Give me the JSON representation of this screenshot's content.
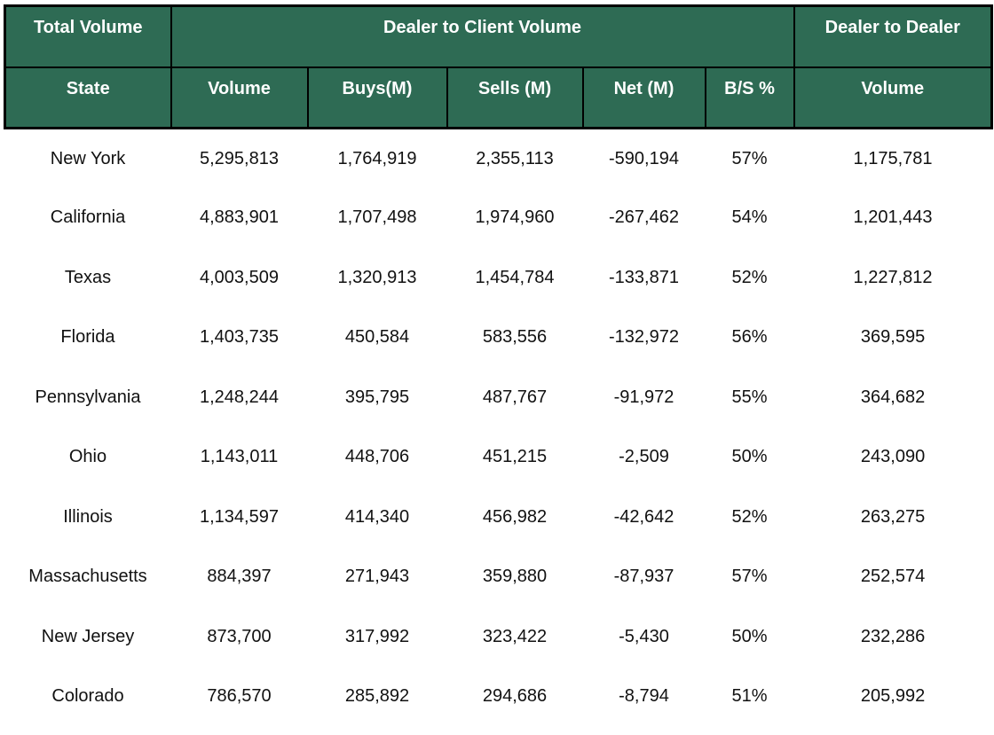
{
  "chart_data": {
    "type": "table",
    "column_groups": [
      {
        "label": "Total Volume",
        "span": 1
      },
      {
        "label": "Dealer to Client Volume",
        "span": 5
      },
      {
        "label": "Dealer to Dealer",
        "span": 1
      }
    ],
    "columns": [
      "State",
      "Volume",
      "Buys(M)",
      "Sells (M)",
      "Net (M)",
      "B/S %",
      "Volume"
    ],
    "rows": [
      [
        "New York",
        "5,295,813",
        "1,764,919",
        "2,355,113",
        "-590,194",
        "57%",
        "1,175,781"
      ],
      [
        "California",
        "4,883,901",
        "1,707,498",
        "1,974,960",
        "-267,462",
        "54%",
        "1,201,443"
      ],
      [
        "Texas",
        "4,003,509",
        "1,320,913",
        "1,454,784",
        "-133,871",
        "52%",
        "1,227,812"
      ],
      [
        "Florida",
        "1,403,735",
        "450,584",
        "583,556",
        "-132,972",
        "56%",
        "369,595"
      ],
      [
        "Pennsylvania",
        "1,248,244",
        "395,795",
        "487,767",
        "-91,972",
        "55%",
        "364,682"
      ],
      [
        "Ohio",
        "1,143,011",
        "448,706",
        "451,215",
        "-2,509",
        "50%",
        "243,090"
      ],
      [
        "Illinois",
        "1,134,597",
        "414,340",
        "456,982",
        "-42,642",
        "52%",
        "263,275"
      ],
      [
        "Massachusetts",
        "884,397",
        "271,943",
        "359,880",
        "-87,937",
        "57%",
        "252,574"
      ],
      [
        "New Jersey",
        "873,700",
        "317,992",
        "323,422",
        "-5,430",
        "50%",
        "232,286"
      ],
      [
        "Colorado",
        "786,570",
        "285,892",
        "294,686",
        "-8,794",
        "51%",
        "205,992"
      ]
    ],
    "colors": {
      "header_bg": "#2E6B54",
      "header_text": "#FFFFFF",
      "border": "#000000",
      "body_text": "#111111",
      "background": "#FFFFFF"
    }
  }
}
